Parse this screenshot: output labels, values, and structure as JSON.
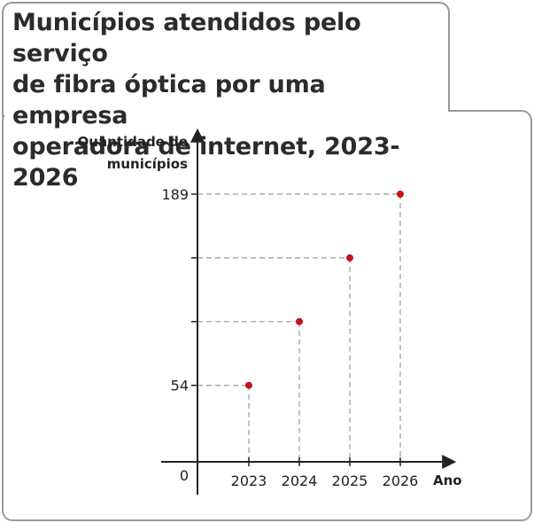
{
  "title": "Municípios atendidos pelo serviço de fibra óptica por uma empresa operadora de internet, 2023-2026",
  "title_lines": [
    "Municípios atendidos pelo serviço",
    "de fibra óptica por uma empresa",
    "operadora de internet, 2023-2026"
  ],
  "colors": {
    "point": "#c0141c",
    "axis": "#222222",
    "guide": "#999999",
    "border": "#9a9a9a"
  },
  "chart_data": {
    "type": "scatter",
    "title": "Municípios atendidos pelo serviço de fibra óptica por uma empresa operadora de internet, 2023-2026",
    "xlabel": "Ano",
    "ylabel_lines": [
      "Quantidade de",
      "municípios"
    ],
    "origin_label": "0",
    "categories": [
      "2023",
      "2024",
      "2025",
      "2026"
    ],
    "values": [
      54,
      99,
      144,
      189
    ],
    "y_tick_values": [
      54,
      99,
      144,
      189
    ],
    "y_tick_labels": [
      "54",
      "",
      "",
      "189"
    ],
    "ylim": [
      0,
      189
    ],
    "grid": false,
    "guide_lines": "dashed"
  }
}
